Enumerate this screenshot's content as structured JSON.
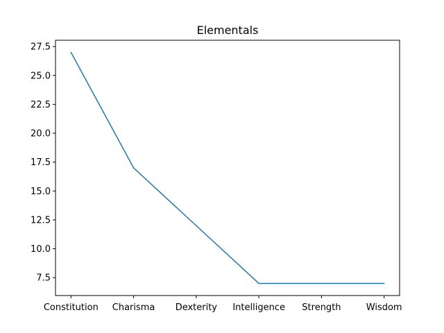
{
  "chart_data": {
    "type": "line",
    "title": "Elementals",
    "xlabel": "",
    "ylabel": "",
    "categories": [
      "Constitution",
      "Charisma",
      "Dexterity",
      "Intelligence",
      "Strength",
      "Wisdom"
    ],
    "series": [
      {
        "values": [
          27,
          17,
          12,
          7,
          7,
          7
        ]
      }
    ],
    "ylim": [
      5.95,
      28.05
    ],
    "yticks": [
      7.5,
      10.0,
      12.5,
      15.0,
      17.5,
      20.0,
      22.5,
      25.0,
      27.5
    ],
    "ytick_labels": [
      "7.5",
      "10.0",
      "12.5",
      "15.0",
      "17.5",
      "20.0",
      "22.5",
      "25.0",
      "27.5"
    ],
    "grid": false,
    "line_color": "#1f77b4"
  }
}
